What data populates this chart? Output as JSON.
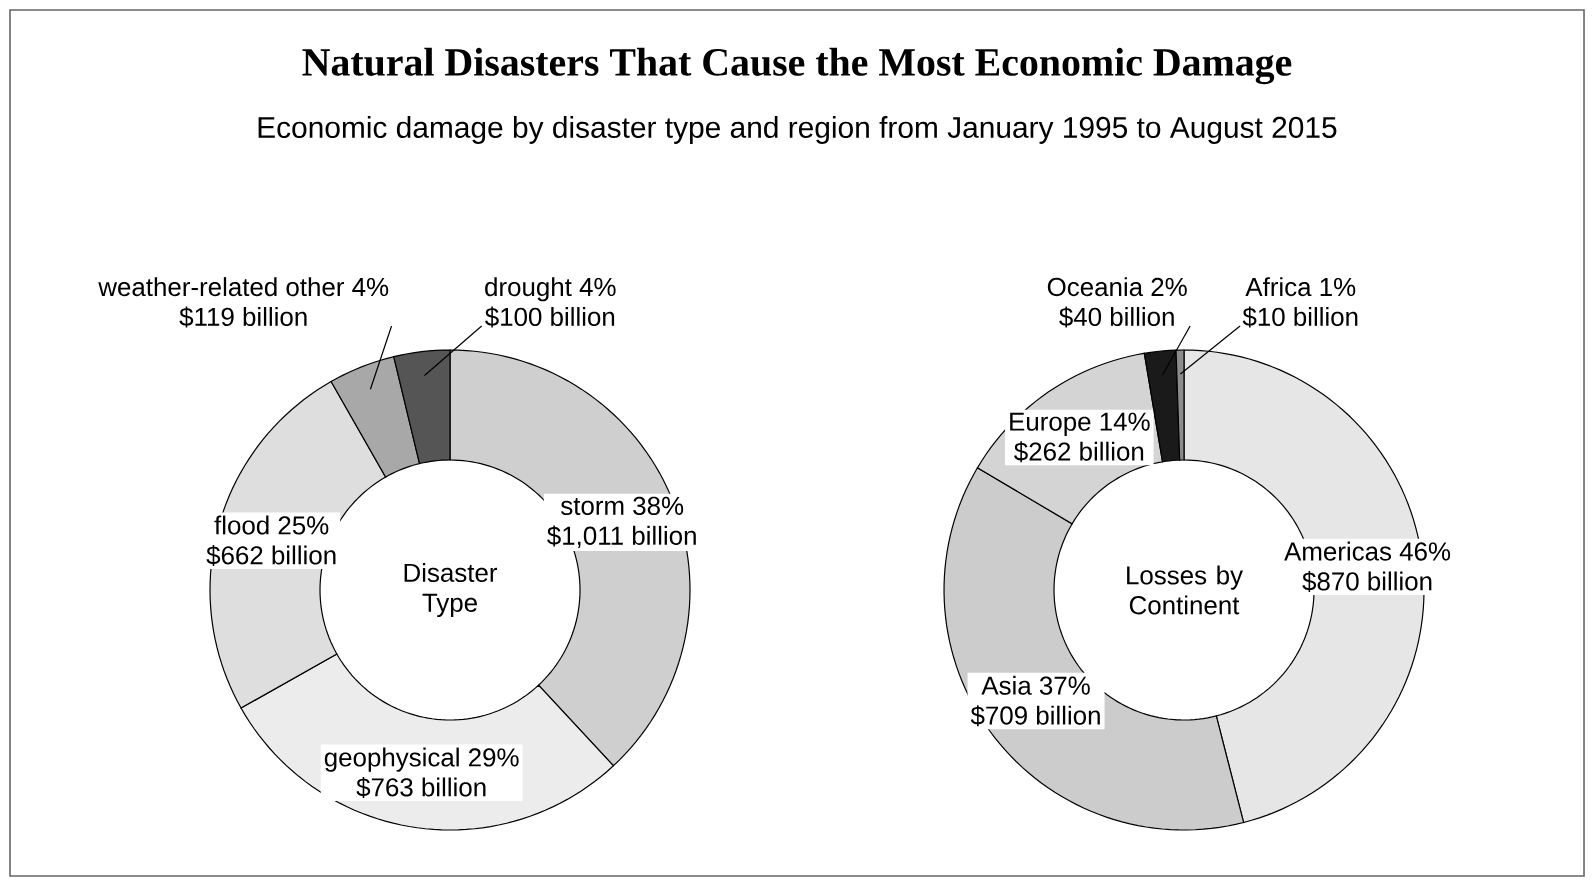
{
  "chart_data": [
    {
      "type": "donut",
      "title": "Natural Disasters That Cause the Most Economic Damage",
      "subtitle": "Economic damage by disaster type and region from January 1995 to August 2015",
      "categories": [
        "storm 38%",
        "geophysical 29%",
        "flood 25%",
        "weather-related other 4%",
        "drought 4%"
      ],
      "values": [
        1011,
        763,
        662,
        119,
        100
      ],
      "value_labels": [
        "$1,011 billion",
        "$763 billion",
        "$662 billion",
        "$119 billion",
        "$100 billion"
      ],
      "colors": [
        "#cfcfcf",
        "#ececec",
        "#dedede",
        "#a8a8a8",
        "#555555"
      ],
      "annotations": [
        "Disaster Type"
      ]
    },
    {
      "type": "donut",
      "categories": [
        "Americas 46%",
        "Asia 37%",
        "Europe 14%",
        "Oceania 2%",
        "Africa 1%"
      ],
      "values": [
        870,
        709,
        262,
        40,
        10
      ],
      "value_labels": [
        "$870 billion",
        "$709 billion",
        "$262 billion",
        "$40 billion",
        "$10 billion"
      ],
      "colors": [
        "#e6e6e6",
        "#cccccc",
        "#d4d4d4",
        "#1a1a1a",
        "#8c8c8c"
      ],
      "annotations": [
        "Losses by Continent"
      ]
    }
  ]
}
